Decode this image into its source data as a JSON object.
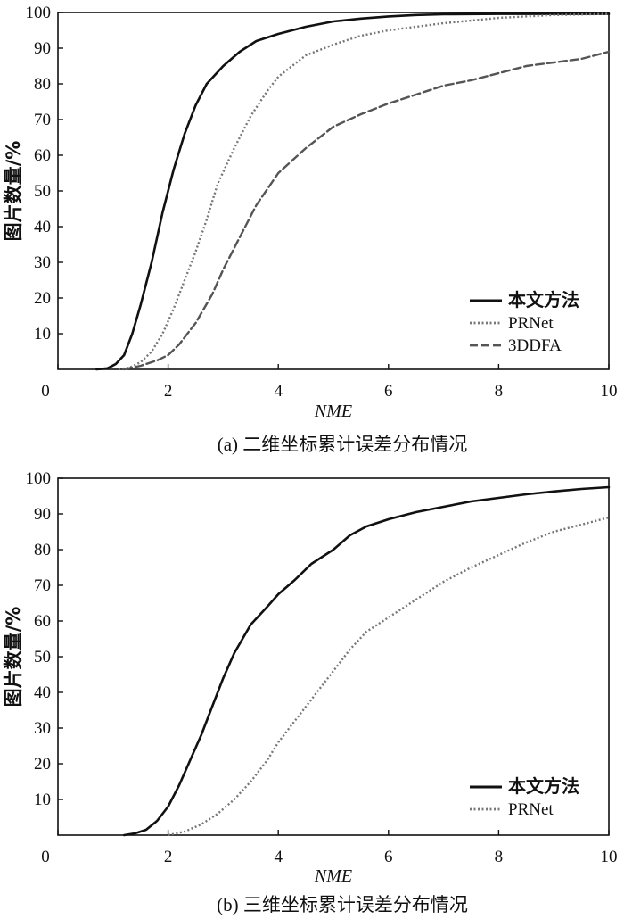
{
  "chart_data": [
    {
      "type": "line",
      "caption": "(a) 二维坐标累计误差分布情况",
      "xlabel": "NME",
      "ylabel": "图片数量/%",
      "xlim": [
        0,
        10
      ],
      "ylim": [
        0,
        100
      ],
      "xticks": [
        0,
        2,
        4,
        6,
        8,
        10
      ],
      "yticks": [
        10,
        20,
        30,
        40,
        50,
        60,
        70,
        80,
        90,
        100
      ],
      "legend_position": "bottom-right",
      "series": [
        {
          "name": "本文方法",
          "style": "solid",
          "color": "#111111",
          "x": [
            0.7,
            0.9,
            1.05,
            1.2,
            1.35,
            1.5,
            1.7,
            1.9,
            2.1,
            2.3,
            2.5,
            2.7,
            3.0,
            3.3,
            3.6,
            4.0,
            4.5,
            5.0,
            5.5,
            6.0,
            6.5,
            7.0,
            8.0,
            9.0,
            10.0
          ],
          "y": [
            0,
            0.3,
            1.5,
            4,
            10,
            18,
            30,
            44,
            56,
            66,
            74,
            80,
            85,
            89,
            92,
            94,
            96,
            97.5,
            98.3,
            98.9,
            99.3,
            99.5,
            99.6,
            99.6,
            99.6
          ]
        },
        {
          "name": "PRNet",
          "style": "dotted",
          "color": "#777777",
          "x": [
            1.1,
            1.3,
            1.5,
            1.7,
            1.9,
            2.1,
            2.3,
            2.5,
            2.7,
            2.9,
            3.2,
            3.5,
            3.8,
            4.0,
            4.5,
            5.0,
            5.5,
            6.0,
            7.0,
            8.0,
            9.0,
            10.0
          ],
          "y": [
            0,
            0.5,
            2,
            5,
            10,
            17,
            25,
            33,
            42,
            52,
            62,
            71,
            78,
            82,
            88,
            91,
            93.5,
            95,
            97,
            98.5,
            99.3,
            99.6
          ]
        },
        {
          "name": "3DDFA",
          "style": "dashed",
          "color": "#555555",
          "x": [
            1.2,
            1.5,
            1.8,
            2.0,
            2.2,
            2.5,
            2.8,
            3.0,
            3.3,
            3.6,
            4.0,
            4.5,
            5.0,
            5.5,
            6.0,
            6.5,
            7.0,
            7.5,
            8.0,
            8.5,
            9.0,
            9.5,
            10.0
          ],
          "y": [
            0,
            1,
            2.5,
            4,
            7,
            13,
            21,
            28,
            37,
            46,
            55,
            62,
            68,
            71.5,
            74.5,
            77,
            79.5,
            81,
            83,
            85,
            86,
            87,
            89
          ]
        }
      ]
    },
    {
      "type": "line",
      "caption": "(b) 三维坐标累计误差分布情况",
      "xlabel": "NME",
      "ylabel": "图片数量/%",
      "xlim": [
        0,
        10
      ],
      "ylim": [
        0,
        100
      ],
      "xticks": [
        0,
        2,
        4,
        6,
        8,
        10
      ],
      "yticks": [
        10,
        20,
        30,
        40,
        50,
        60,
        70,
        80,
        90,
        100
      ],
      "legend_position": "bottom-right",
      "series": [
        {
          "name": "本文方法",
          "style": "solid",
          "color": "#111111",
          "x": [
            1.2,
            1.4,
            1.6,
            1.8,
            2.0,
            2.2,
            2.4,
            2.6,
            2.8,
            3.0,
            3.2,
            3.5,
            3.8,
            4.0,
            4.3,
            4.6,
            5.0,
            5.3,
            5.6,
            6.0,
            6.5,
            7.0,
            7.5,
            8.0,
            8.5,
            9.0,
            9.5,
            10.0
          ],
          "y": [
            0,
            0.5,
            1.5,
            4,
            8,
            14,
            21,
            28,
            36,
            44,
            51,
            59,
            64,
            67.5,
            71.5,
            76,
            80,
            84,
            86.5,
            88.5,
            90.5,
            92,
            93.5,
            94.5,
            95.5,
            96.3,
            97,
            97.5
          ]
        },
        {
          "name": "PRNet",
          "style": "dotted",
          "color": "#777777",
          "x": [
            2.0,
            2.3,
            2.6,
            2.9,
            3.2,
            3.5,
            3.8,
            4.0,
            4.3,
            4.6,
            5.0,
            5.3,
            5.6,
            6.0,
            6.5,
            7.0,
            7.5,
            8.0,
            8.5,
            9.0,
            9.5,
            10.0
          ],
          "y": [
            0,
            1,
            3,
            6,
            10,
            15,
            21,
            26,
            32,
            38,
            46,
            52,
            57,
            61,
            66,
            71,
            75,
            78.5,
            82,
            85,
            87,
            89
          ]
        }
      ]
    }
  ]
}
